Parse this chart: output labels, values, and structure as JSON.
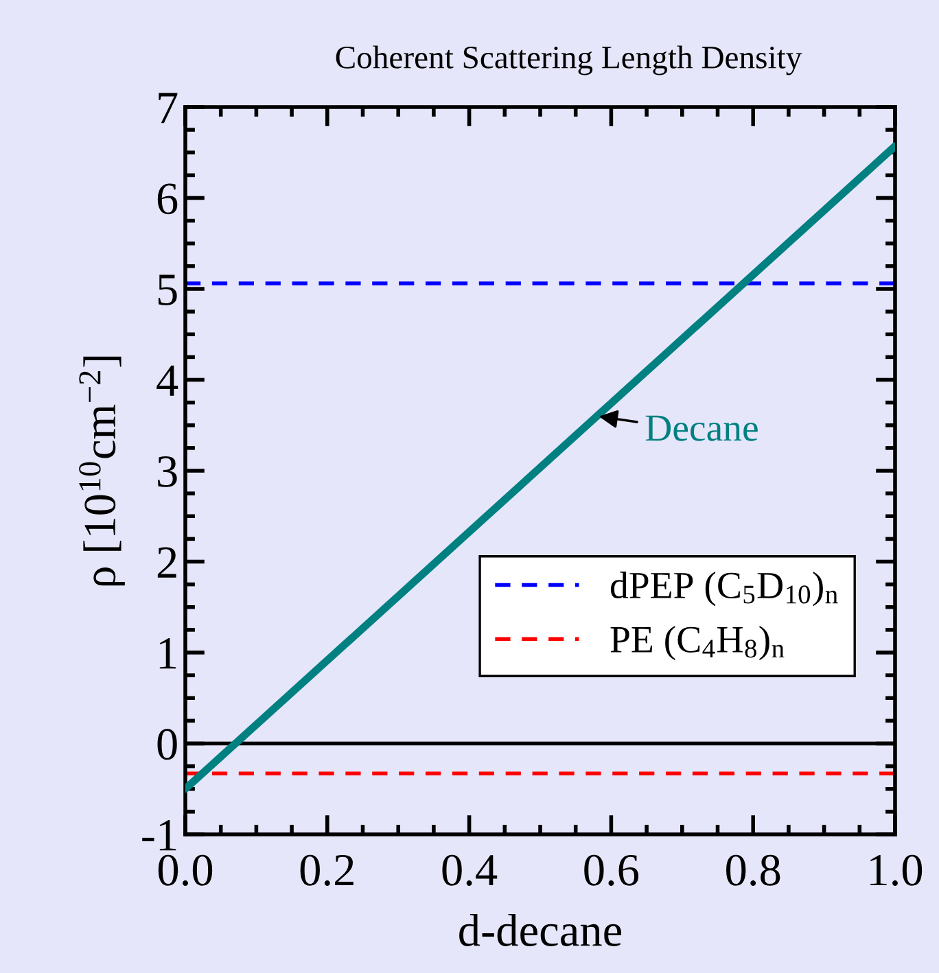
{
  "chart_data": {
    "type": "line",
    "title": "Coherent Scattering Length Density",
    "xlabel": "d-decane",
    "ylabel": "ρ [10$^{10}$cm$^{−2}$]",
    "xlim": [
      0,
      1
    ],
    "ylim": [
      -1,
      7
    ],
    "xticks": [
      {
        "value": 0,
        "label": "0.0"
      },
      0.2,
      0.4,
      0.6,
      0.8,
      {
        "value": 1,
        "label": "1.0"
      }
    ],
    "yticks": [
      -1,
      0,
      1,
      2,
      3,
      4,
      5,
      6,
      7
    ],
    "series": [
      {
        "color": "#008080",
        "x": [
          0.0,
          1.0
        ],
        "values": [
          -0.5,
          6.57
        ],
        "line_style": "solid"
      }
    ],
    "ref_lines": [
      {
        "axis": "y",
        "value": 0,
        "color": "#000000",
        "line_style": "solid"
      },
      {
        "axis": "y",
        "value": 5.06,
        "label": "dPEP (C$_{5}$D$_{10}$)$_{n}$",
        "color": "#0000ff",
        "line_style": "dashed"
      },
      {
        "axis": "y",
        "value": -0.33,
        "label": "PE (C$_{4}$H$_{8}$)$_{n}$",
        "color": "#ff0000",
        "line_style": "dashed"
      }
    ],
    "annotations": [
      {
        "text": "Decane",
        "x": 0.58,
        "y": 3.6
      }
    ],
    "legend": "right",
    "grid": false,
    "marker": "none"
  }
}
